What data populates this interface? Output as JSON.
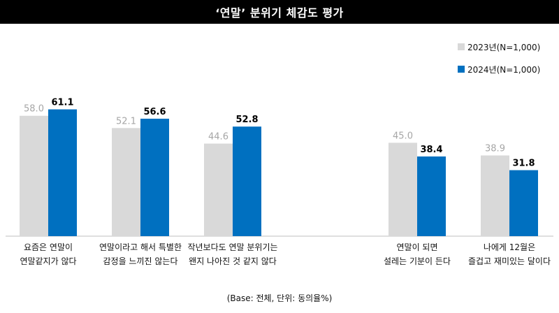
{
  "title": "‘연말’ 분위기 체감도 평가",
  "footnote": "(Base: 전체, 단위: 동의율%)",
  "colors": {
    "series_2023": "#d9d9d9",
    "series_2024": "#0070c0"
  },
  "chart_data": {
    "type": "bar",
    "categories": [
      [
        "요즘은 연말이",
        "연말같지가 않다"
      ],
      [
        "연말이라고 해서 특별한",
        "감정을 느끼진 않는다"
      ],
      [
        "작년보다도 연말 분위기는",
        "왠지 나아진 것 같지 않다"
      ],
      [
        "연말이 되면",
        "설레는 기분이 든다"
      ],
      [
        "나에게 12월은",
        "즐겁고 재미있는 달이다"
      ]
    ],
    "series": [
      {
        "name": "2023년(N=1,000)",
        "values": [
          58.0,
          52.1,
          44.6,
          45.0,
          38.9
        ]
      },
      {
        "name": "2024년(N=1,000)",
        "values": [
          61.1,
          56.6,
          52.8,
          38.4,
          31.8
        ]
      }
    ],
    "value_labels": [
      [
        "58.0",
        "52.1",
        "44.6",
        "45.0",
        "38.9"
      ],
      [
        "61.1",
        "56.6",
        "52.8",
        "38.4",
        "31.8"
      ]
    ],
    "ylim": [
      0,
      100
    ],
    "legend_position": "top-right",
    "grid": false
  }
}
